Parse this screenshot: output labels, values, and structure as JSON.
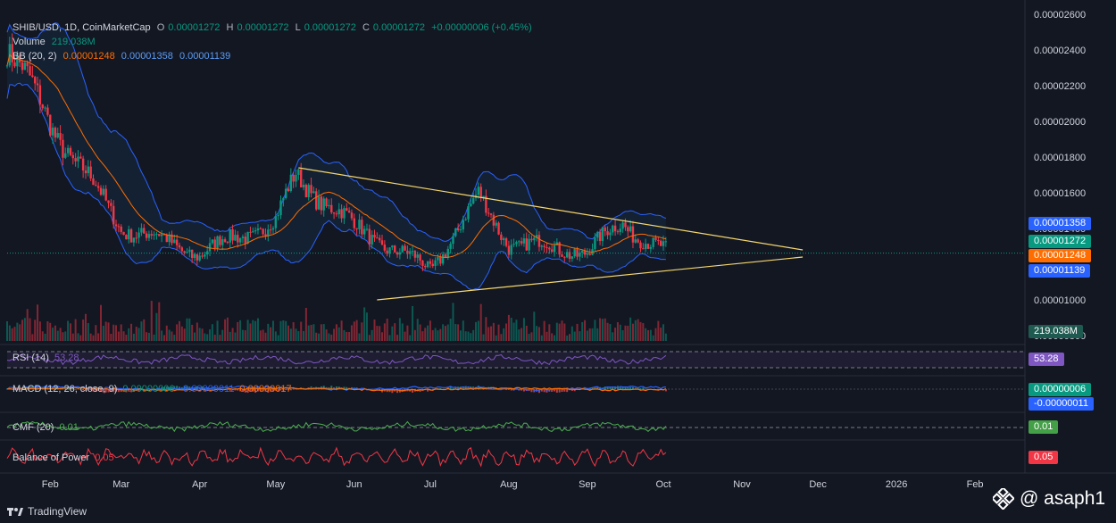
{
  "header": {
    "symbol": "SHIB/USD, 1D, CoinMarketCap",
    "open_label": "O",
    "open": "0.00001272",
    "high_label": "H",
    "high": "0.00001272",
    "low_label": "L",
    "low": "0.00001272",
    "close_label": "C",
    "close": "0.00001272",
    "change": "+0.00000006 (+0.45%)",
    "volume_label": "Volume",
    "volume": "219.038M",
    "bb_label": "BB (20, 2)",
    "bb_basis": "0.00001248",
    "bb_upper": "0.00001358",
    "bb_lower": "0.00001139"
  },
  "price_axis": {
    "ticks": [
      "0.00002600",
      "0.00002400",
      "0.00002200",
      "0.00002000",
      "0.00001800",
      "0.00001600",
      "0.00001400",
      "0.00001000",
      "0.00000800"
    ],
    "tags": {
      "bb_upper": "0.00001358",
      "last": "0.00001272",
      "bb_basis": "0.00001248",
      "bb_lower": "0.00001139",
      "volume": "219.038M"
    }
  },
  "time_axis": {
    "ticks": [
      "Feb",
      "Mar",
      "Apr",
      "May",
      "Jun",
      "Jul",
      "Aug",
      "Sep",
      "Oct",
      "Nov",
      "Dec",
      "2026",
      "Feb"
    ]
  },
  "indicators": {
    "rsi": {
      "label": "RSI (14)",
      "value": "53.28",
      "tag": "53.28"
    },
    "macd": {
      "label": "MACD (12, 26, close, 9)",
      "v1": "0.00000006",
      "v2": "-0.00000011",
      "v3": "0.00000017",
      "tag1": "0.00000006",
      "tag2": "-0.00000011"
    },
    "cmf": {
      "label": "CMF (20)",
      "value": "0.01",
      "tag": "0.01"
    },
    "bop": {
      "label": "Balance of Power",
      "value": "0.05",
      "tag": "0.05"
    }
  },
  "footer": {
    "brand": "TradingView"
  },
  "watermark": {
    "text": "@ asaph1"
  },
  "colors": {
    "up": "#089981",
    "down": "#f23645",
    "bb": "#2962ff",
    "basis": "#ff6d00",
    "trend": "#f5d76e",
    "rsi": "#7e57c2",
    "cmf": "#4caf50",
    "bop": "#f23645"
  },
  "chart_data": {
    "type": "line",
    "title": "SHIB/USD, 1D, CoinMarketCap",
    "series": [
      {
        "name": "Volume",
        "x": [
          "2025-01-15",
          "2025-02-01",
          "2025-03-01",
          "2025-04-01",
          "2025-05-01",
          "2025-05-09",
          "2025-06-01",
          "2025-07-01",
          "2025-07-20",
          "2025-08-01",
          "2025-09-01",
          "2025-09-15",
          "2025-10-02"
        ],
        "y": [
          2.44e-05,
          2e-05,
          1.42e-05,
          1.27e-05,
          1.45e-05,
          1.7e-05,
          1.42e-05,
          1.18e-05,
          1.58e-05,
          1.33e-05,
          1.28e-05,
          1.44e-05,
          1.272e-05
        ]
      }
    ],
    "trendlines": [
      {
        "name": "",
        "from": [
          "2025-05-10",
          1.75e-05
        ],
        "to": [
          "2025-11-25",
          1.29e-05
        ]
      },
      {
        "name": "",
        "from": [
          "2025-06-10",
          1.01e-05
        ],
        "to": [
          "2025-11-25",
          1.25e-05
        ]
      }
    ],
    "ylim": [
      7.8e-06,
      2.64e-05
    ],
    "xlim": [
      "2025-01-15",
      "2026-02-20"
    ]
  }
}
